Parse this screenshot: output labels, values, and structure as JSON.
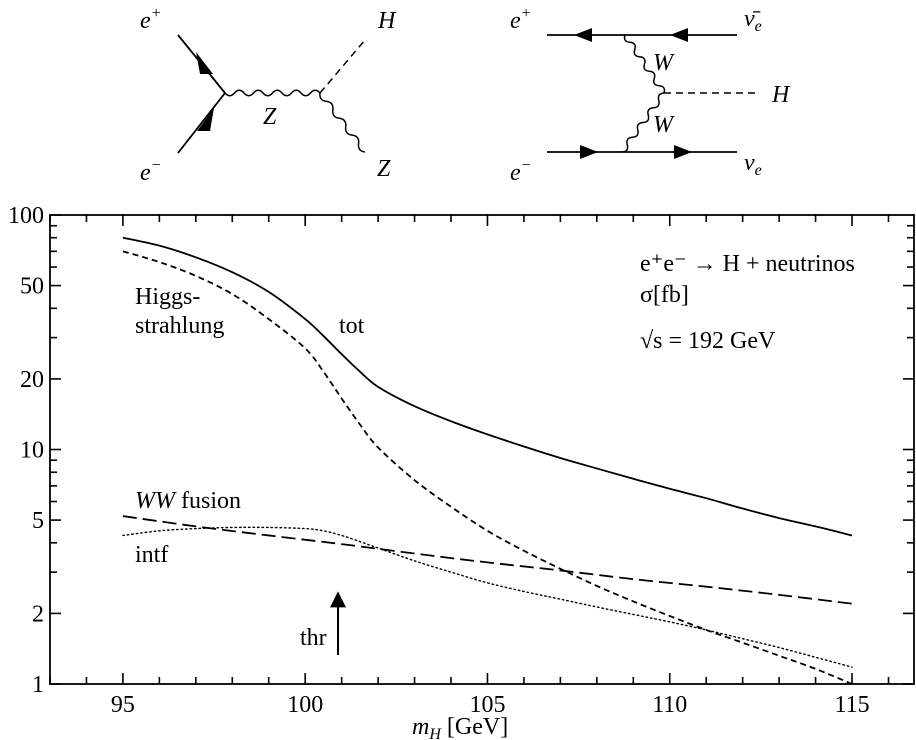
{
  "diagram_hs": {
    "e_plus": "e",
    "e_plus_sup": "+",
    "e_minus": "e",
    "e_minus_sup": "−",
    "h_label": "H",
    "z_prop_label": "Z",
    "z_out_label": "Z"
  },
  "diagram_ww": {
    "e_plus": "e",
    "e_plus_sup": "+",
    "e_minus": "e",
    "e_minus_sup": "−",
    "nubar_label": "ν̄",
    "nubar_sub": "e",
    "nu_label": "ν",
    "nu_sub": "e",
    "w_upper_label": "W",
    "w_lower_label": "W",
    "h_label": "H"
  },
  "chart_data": {
    "type": "line",
    "xlabel": "m",
    "xlabel_sub": "H",
    "xlabel_unit": " [GeV]",
    "xlim": [
      93,
      116.7
    ],
    "ylim": [
      1,
      100
    ],
    "y_scale": "log",
    "x_ticks": [
      95,
      100,
      105,
      110,
      115
    ],
    "y_ticks": [
      1,
      2,
      5,
      10,
      20,
      50,
      100
    ],
    "process_label": "e⁺e⁻ → H + neutrinos",
    "ylabel_text": "σ[fb]",
    "energy_label": "√s = 192 GeV",
    "threshold": {
      "label": "thr",
      "x": 100.9
    },
    "series": [
      {
        "name": "tot",
        "style": "solid",
        "x": [
          95,
          96,
          97,
          98,
          99,
          100,
          100.5,
          101,
          101.5,
          102,
          103,
          104,
          105,
          106,
          107,
          108,
          109,
          110,
          111,
          112,
          113,
          114,
          115
        ],
        "y": [
          80,
          74,
          66,
          57,
          47,
          36,
          30.5,
          25.5,
          21.5,
          18.5,
          15.3,
          13.2,
          11.6,
          10.3,
          9.2,
          8.3,
          7.5,
          6.8,
          6.2,
          5.6,
          5.1,
          4.7,
          4.3
        ]
      },
      {
        "name": "Higgs-strahlung",
        "label_lines": [
          "Higgs-",
          "strahlung"
        ],
        "style": "dashed",
        "x": [
          95,
          96,
          97,
          98,
          99,
          100,
          100.5,
          101,
          101.5,
          102,
          103,
          104,
          105,
          106,
          107,
          108,
          109,
          110,
          111,
          112,
          113,
          114,
          115
        ],
        "y": [
          70,
          63,
          55,
          46,
          36,
          27,
          21.5,
          16.5,
          12.8,
          10.2,
          7.4,
          5.7,
          4.5,
          3.7,
          3.1,
          2.62,
          2.25,
          1.95,
          1.7,
          1.5,
          1.32,
          1.16,
          1.0
        ]
      },
      {
        "name": "WW fusion",
        "label_it": "WW",
        "label_rest": " fusion",
        "style": "longdash",
        "x": [
          95,
          97,
          99,
          101,
          103,
          105,
          107,
          109,
          111,
          113,
          115
        ],
        "y": [
          5.2,
          4.7,
          4.3,
          3.95,
          3.6,
          3.3,
          3.05,
          2.8,
          2.6,
          2.4,
          2.2
        ]
      },
      {
        "name": "intf",
        "style": "dotted",
        "x": [
          95,
          96,
          97,
          98,
          99,
          100,
          100.5,
          101,
          101.5,
          102,
          103,
          104,
          105,
          106,
          107,
          108,
          109,
          110,
          111,
          112,
          113,
          114,
          115
        ],
        "y": [
          4.3,
          4.5,
          4.6,
          4.65,
          4.65,
          4.6,
          4.5,
          4.3,
          4.05,
          3.8,
          3.35,
          3.0,
          2.7,
          2.48,
          2.3,
          2.13,
          1.98,
          1.84,
          1.7,
          1.56,
          1.43,
          1.3,
          1.18
        ]
      }
    ]
  }
}
